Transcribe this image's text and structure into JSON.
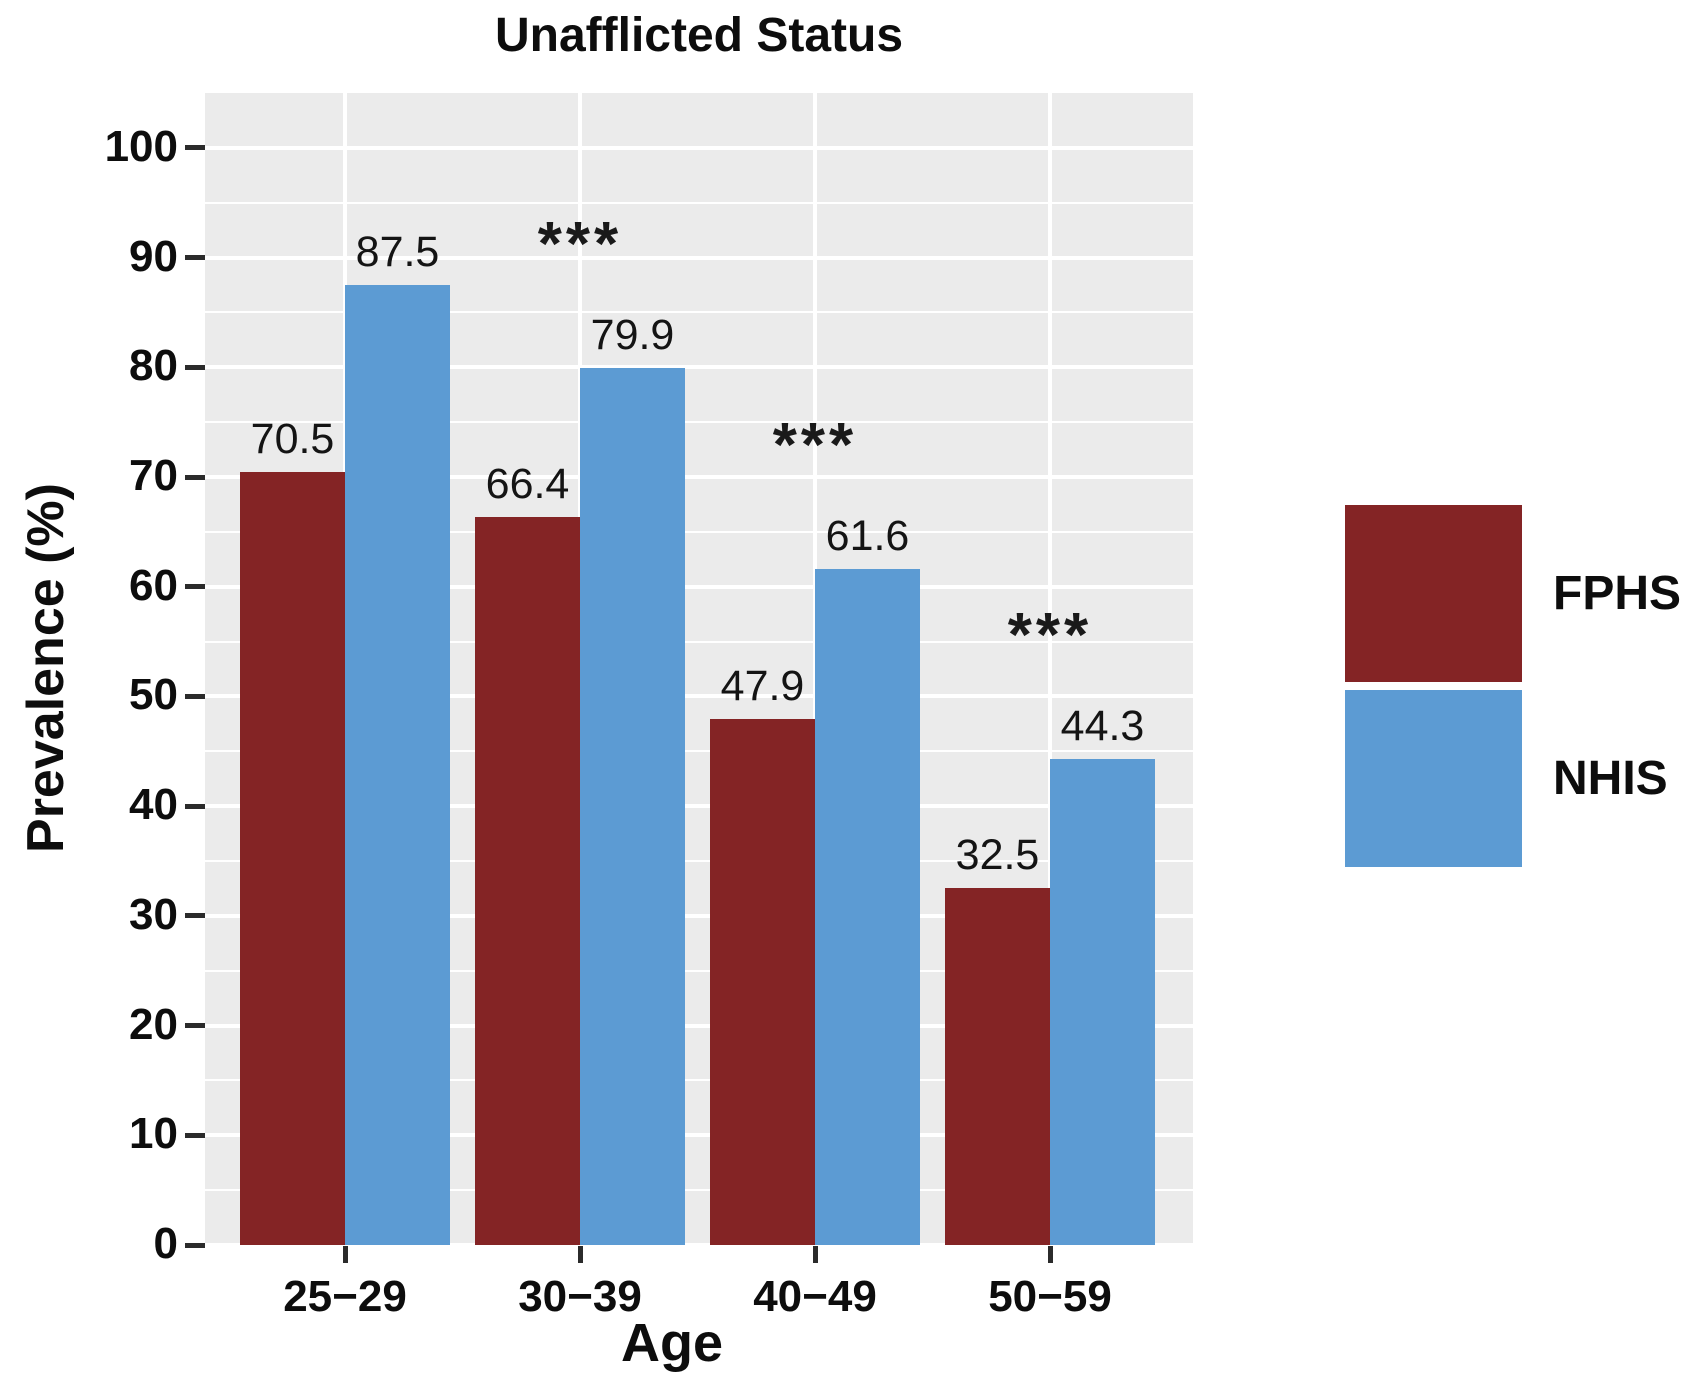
{
  "chart_data": {
    "type": "bar",
    "title": "Unafflicted Status",
    "xlabel": "Age",
    "ylabel": "Prevalence (%)",
    "categories": [
      "25−29",
      "30−39",
      "40−49",
      "50−59"
    ],
    "series": [
      {
        "name": "FPHS",
        "color": "#842425",
        "values": [
          70.5,
          66.4,
          47.9,
          32.5
        ]
      },
      {
        "name": "NHIS",
        "color": "#5c9bd3",
        "values": [
          87.5,
          79.9,
          61.6,
          44.3
        ]
      }
    ],
    "value_labels": [
      "70.5",
      "87.5",
      "66.4",
      "79.9",
      "47.9",
      "61.6",
      "32.5",
      "44.3"
    ],
    "significance": [
      {
        "group": "30−39",
        "marker": "***"
      },
      {
        "group": "40−49",
        "marker": "***"
      },
      {
        "group": "50−59",
        "marker": "***"
      }
    ],
    "ylim": [
      0,
      105
    ],
    "yticks": [
      0,
      10,
      20,
      30,
      40,
      50,
      60,
      70,
      80,
      90,
      100
    ],
    "minor_yticks": [
      5,
      15,
      25,
      35,
      45,
      55,
      65,
      75,
      85,
      95
    ],
    "grid": {
      "panel_bg": "#ebebeb",
      "major_color": "#ffffff",
      "minor_color": "#ffffff",
      "vertical_major_at_categories": true
    },
    "legend_position": "right"
  }
}
